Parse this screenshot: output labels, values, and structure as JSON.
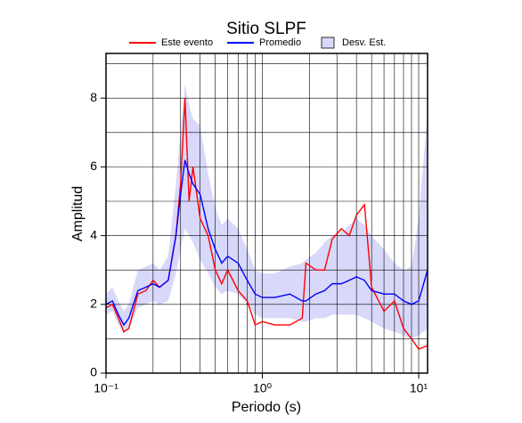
{
  "chart_data": {
    "type": "line",
    "title": "Sitio SLPF",
    "x_label": "Periodo (s)",
    "y_label": "Amplitud",
    "xscale": "log",
    "x": [
      0.1,
      0.11,
      0.12,
      0.13,
      0.14,
      0.16,
      0.18,
      0.2,
      0.22,
      0.25,
      0.28,
      0.3,
      0.32,
      0.34,
      0.36,
      0.4,
      0.45,
      0.5,
      0.55,
      0.6,
      0.7,
      0.8,
      0.9,
      1.0,
      1.2,
      1.5,
      1.8,
      1.9,
      2.2,
      2.5,
      2.8,
      3.2,
      3.6,
      4.0,
      4.5,
      5.0,
      6.0,
      7.0,
      8.0,
      9.0,
      10.0,
      11.4
    ],
    "series": [
      {
        "name": "Este evento",
        "color": "#ff0000",
        "values": [
          1.9,
          2.0,
          1.6,
          1.2,
          1.3,
          2.3,
          2.4,
          2.7,
          2.5,
          2.7,
          4.0,
          5.5,
          8.0,
          5.0,
          6.0,
          4.5,
          4.0,
          3.0,
          2.6,
          3.0,
          2.4,
          2.1,
          1.4,
          1.5,
          1.4,
          1.4,
          1.6,
          3.2,
          3.0,
          3.0,
          3.9,
          4.2,
          4.0,
          4.6,
          4.9,
          2.5,
          1.8,
          2.1,
          1.3,
          1.0,
          0.7,
          0.8
        ]
      },
      {
        "name": "Promedio",
        "color": "#0000ff",
        "values": [
          2.0,
          2.1,
          1.7,
          1.4,
          1.6,
          2.4,
          2.5,
          2.6,
          2.5,
          2.7,
          4.0,
          5.2,
          6.2,
          5.8,
          5.5,
          5.2,
          4.2,
          3.6,
          3.2,
          3.4,
          3.2,
          2.7,
          2.3,
          2.2,
          2.2,
          2.3,
          2.1,
          2.1,
          2.3,
          2.4,
          2.6,
          2.6,
          2.7,
          2.8,
          2.7,
          2.4,
          2.3,
          2.3,
          2.1,
          2.0,
          2.1,
          3.0
        ]
      }
    ],
    "band": {
      "name": "Desv. Est.",
      "color": "#d8d8fa",
      "lower": [
        1.7,
        1.8,
        1.4,
        1.2,
        1.3,
        1.9,
        2.0,
        2.1,
        2.0,
        2.1,
        2.9,
        3.6,
        4.2,
        4.0,
        3.8,
        3.3,
        2.9,
        2.5,
        2.3,
        2.4,
        2.3,
        2.0,
        1.7,
        1.6,
        1.6,
        1.6,
        1.5,
        1.5,
        1.6,
        1.6,
        1.7,
        1.7,
        1.7,
        1.7,
        1.6,
        1.5,
        1.3,
        1.2,
        1.1,
        1.0,
        1.1,
        1.3
      ],
      "upper": [
        2.3,
        2.5,
        2.1,
        1.8,
        2.0,
        3.0,
        3.1,
        3.2,
        3.0,
        3.4,
        5.5,
        7.0,
        8.4,
        7.8,
        7.4,
        7.2,
        5.8,
        4.8,
        4.3,
        4.5,
        4.2,
        3.6,
        3.0,
        2.9,
        2.9,
        3.1,
        3.2,
        3.3,
        3.5,
        3.8,
        4.0,
        4.1,
        4.3,
        4.5,
        4.3,
        4.0,
        3.6,
        3.2,
        3.0,
        3.1,
        4.5,
        7.6
      ]
    },
    "xlim": [
      0.1,
      11.4
    ],
    "ylim": [
      0,
      9.3
    ],
    "xticks": [
      {
        "value": 0.1,
        "label": "10⁻¹"
      },
      {
        "value": 1,
        "label": "10⁰"
      },
      {
        "value": 10,
        "label": "10¹"
      }
    ],
    "xminor": [
      0.2,
      0.3,
      0.4,
      0.5,
      0.6,
      0.7,
      0.8,
      0.9,
      2,
      3,
      4,
      5,
      6,
      7,
      8,
      9
    ],
    "yticks": [
      0,
      2,
      4,
      6,
      8
    ],
    "yminor": [
      1,
      3,
      5,
      7,
      9
    ],
    "grid": true
  }
}
